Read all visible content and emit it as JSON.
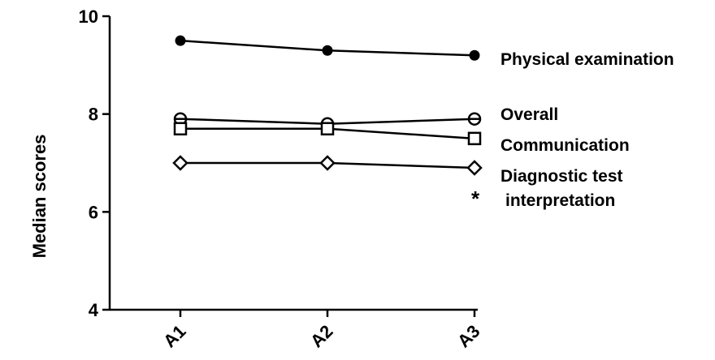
{
  "chart_data": {
    "type": "line",
    "title": "",
    "xlabel": "",
    "ylabel": "Median scores",
    "categories": [
      "A1",
      "A2",
      "A3"
    ],
    "yticks": [
      4,
      6,
      8,
      10
    ],
    "ylim": [
      4,
      10
    ],
    "grid": false,
    "legend_position": "inline-right",
    "series": [
      {
        "name": "Physical examination",
        "values": [
          9.5,
          9.3,
          9.2
        ],
        "marker": "filled-circle",
        "label_lines": [
          "Physical examination"
        ]
      },
      {
        "name": "Overall",
        "values": [
          7.9,
          7.8,
          7.9
        ],
        "marker": "circle-with-dash",
        "label_lines": [
          "Overall"
        ]
      },
      {
        "name": "Communication",
        "values": [
          7.7,
          7.7,
          7.5
        ],
        "marker": "open-square",
        "label_lines": [
          "Communication"
        ]
      },
      {
        "name": "Diagnostic test interpretation",
        "values": [
          7.0,
          7.0,
          6.9
        ],
        "marker": "open-diamond",
        "label_lines": [
          "Diagnostic test",
          "interpretation"
        ]
      }
    ],
    "annotations": [
      {
        "text": "*"
      }
    ],
    "line_color": "#000000"
  }
}
